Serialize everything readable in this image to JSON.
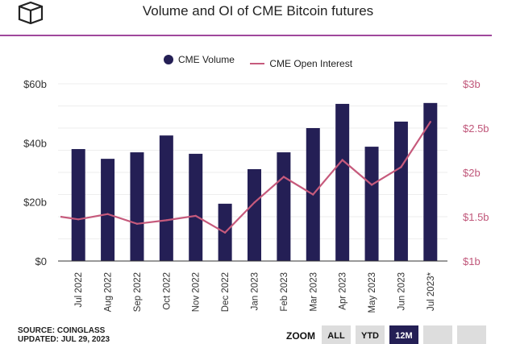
{
  "header": {
    "title": "Volume and OI of CME Bitcoin futures"
  },
  "legend": {
    "volume": "CME Volume",
    "oi": "CME Open Interest"
  },
  "colors": {
    "bar": "#241f55",
    "line": "#c65a7c",
    "right_axis": "#c0577a",
    "rule": "#a0489c"
  },
  "chart_data": {
    "type": "bar",
    "title": "Volume and OI of CME Bitcoin futures",
    "categories": [
      "Jul 2022",
      "Aug 2022",
      "Sep 2022",
      "Oct 2022",
      "Nov 2022",
      "Dec 2022",
      "Jan 2023",
      "Feb 2023",
      "Mar 2023",
      "Apr 2023",
      "May 2023",
      "Jun 2023",
      "Jul 2023*"
    ],
    "series": [
      {
        "name": "CME Volume",
        "type": "bar",
        "axis": "left",
        "unit": "$b",
        "values": [
          37.9,
          34.6,
          36.8,
          42.5,
          36.3,
          19.4,
          31.1,
          36.8,
          45.0,
          53.2,
          38.7,
          47.2,
          53.5
        ]
      },
      {
        "name": "CME Open Interest",
        "type": "line",
        "axis": "right",
        "unit": "$b",
        "values": [
          1.47,
          1.53,
          1.42,
          1.46,
          1.51,
          1.32,
          1.66,
          1.95,
          1.75,
          2.14,
          1.86,
          2.06,
          2.57
        ]
      }
    ],
    "y_left": {
      "ylim": [
        0,
        60
      ],
      "ticks": [
        "$0",
        "$20b",
        "$40b",
        "$60b"
      ]
    },
    "y_right": {
      "ylim": [
        1,
        3
      ],
      "ticks": [
        "$1b",
        "$1.5b",
        "$2b",
        "$2.5b",
        "$3b"
      ]
    },
    "grid": true,
    "legend_position": "top-center"
  },
  "footer": {
    "source": "SOURCE: COINGLASS",
    "updated": "UPDATED: JUL 29, 2023"
  },
  "zoom": {
    "label": "ZOOM",
    "buttons": [
      "ALL",
      "YTD",
      "12M"
    ],
    "active": "12M"
  }
}
